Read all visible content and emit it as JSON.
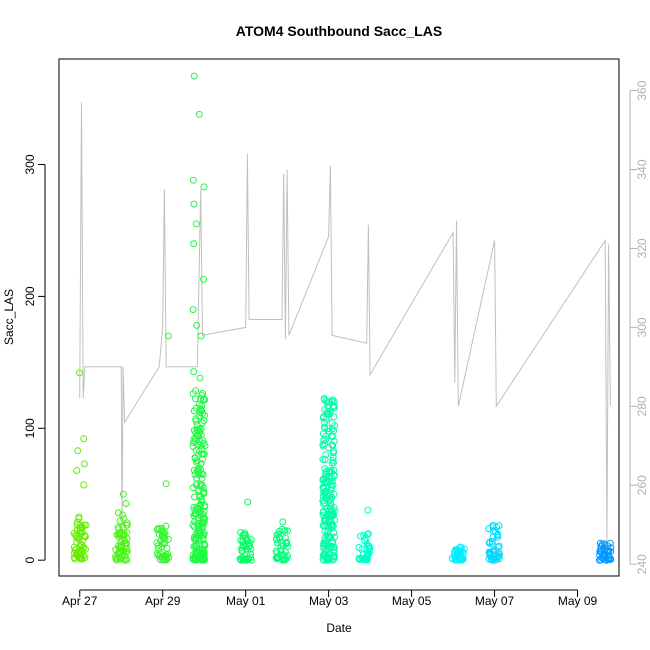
{
  "chart_data": {
    "type": "scatter",
    "title": "ATOM4 Southbound Sacc_LAS",
    "xlabel": "Date",
    "ylabel": "Sacc_LAS",
    "x_ticks": [
      "Apr 27",
      "Apr 29",
      "May 01",
      "May 03",
      "May 05",
      "May 07",
      "May 09"
    ],
    "xlim": [
      "2018-04-26T12:00",
      "2018-05-10T00:00"
    ],
    "ylim": [
      -12,
      380
    ],
    "y_ticks": [
      0,
      100,
      200,
      300
    ],
    "y2lim": [
      237,
      368
    ],
    "y2_ticks": [
      240,
      260,
      280,
      300,
      320,
      340,
      360
    ],
    "grid": false,
    "legend": "none",
    "point_color_scale": [
      "#66ee00",
      "#00ff66",
      "#00ffff",
      "#0099ff"
    ],
    "right_series_color": "#c0c0c0",
    "series": [
      {
        "kind": "points",
        "clusters": [
          {
            "x": "2018-04-27T00:10",
            "ymin": 0,
            "ymax": 33,
            "outliers": [
              142,
              92,
              83,
              73,
              68,
              57
            ]
          },
          {
            "x": "2018-04-28T00:05",
            "ymin": 0,
            "ymax": 36,
            "outliers": [
              50,
              43
            ]
          },
          {
            "x": "2018-04-29T00:00",
            "ymin": 0,
            "ymax": 28,
            "outliers": [
              170,
              58
            ]
          },
          {
            "x": "2018-04-29T21:00",
            "ymin": 0,
            "ymax": 130,
            "outliers": [
              367,
              338,
              288,
              283,
              270,
              255,
              240,
              213,
              190,
              178,
              170,
              143,
              138
            ]
          },
          {
            "x": "2018-05-01T00:05",
            "ymin": 0,
            "ymax": 25,
            "outliers": [
              44
            ]
          },
          {
            "x": "2018-05-01T21:00",
            "ymin": 0,
            "ymax": 25,
            "outliers": [
              29
            ]
          },
          {
            "x": "2018-05-03T00:05",
            "ymin": 0,
            "ymax": 128,
            "outliers": []
          },
          {
            "x": "2018-05-03T21:00",
            "ymin": 0,
            "ymax": 20,
            "outliers": [
              38
            ]
          },
          {
            "x": "2018-05-06T03:00",
            "ymin": 0,
            "ymax": 10,
            "outliers": []
          },
          {
            "x": "2018-05-07T00:00",
            "ymin": 0,
            "ymax": 27,
            "outliers": []
          },
          {
            "x": "2018-05-09T16:00",
            "ymin": 0,
            "ymax": 13,
            "outliers": []
          }
        ]
      },
      {
        "kind": "line",
        "axis": "right",
        "points": [
          [
            "2018-04-27T00:00",
            282
          ],
          [
            "2018-04-27T01:00",
            357
          ],
          [
            "2018-04-27T02:00",
            282
          ],
          [
            "2018-04-27T03:00",
            290
          ],
          [
            "2018-04-28T00:00",
            290
          ],
          [
            "2018-04-28T00:30",
            248
          ],
          [
            "2018-04-28T01:00",
            290
          ],
          [
            "2018-04-28T02:00",
            276
          ],
          [
            "2018-04-28T22:00",
            290
          ],
          [
            "2018-04-29T00:00",
            300
          ],
          [
            "2018-04-29T01:00",
            335
          ],
          [
            "2018-04-29T02:00",
            290
          ],
          [
            "2018-04-29T20:00",
            290
          ],
          [
            "2018-04-29T21:00",
            312
          ],
          [
            "2018-04-29T22:00",
            335
          ],
          [
            "2018-04-29T23:00",
            298
          ],
          [
            "2018-05-01T00:00",
            300
          ],
          [
            "2018-05-01T01:00",
            344
          ],
          [
            "2018-05-01T02:00",
            302
          ],
          [
            "2018-05-01T21:00",
            302
          ],
          [
            "2018-05-01T22:00",
            339
          ],
          [
            "2018-05-01T23:00",
            297
          ],
          [
            "2018-05-02T00:00",
            340
          ],
          [
            "2018-05-02T01:00",
            298
          ],
          [
            "2018-05-03T00:00",
            323
          ],
          [
            "2018-05-03T01:00",
            341
          ],
          [
            "2018-05-03T02:00",
            298
          ],
          [
            "2018-05-03T22:00",
            296
          ],
          [
            "2018-05-03T23:00",
            326
          ],
          [
            "2018-05-04T00:00",
            288
          ],
          [
            "2018-05-06T00:00",
            324
          ],
          [
            "2018-05-06T01:00",
            286
          ],
          [
            "2018-05-06T02:00",
            327
          ],
          [
            "2018-05-06T03:00",
            280
          ],
          [
            "2018-05-07T00:00",
            322
          ],
          [
            "2018-05-07T01:00",
            280
          ],
          [
            "2018-05-09T16:00",
            322
          ],
          [
            "2018-05-09T17:00",
            245
          ],
          [
            "2018-05-09T18:00",
            321
          ],
          [
            "2018-05-09T19:00",
            280
          ]
        ]
      }
    ]
  }
}
